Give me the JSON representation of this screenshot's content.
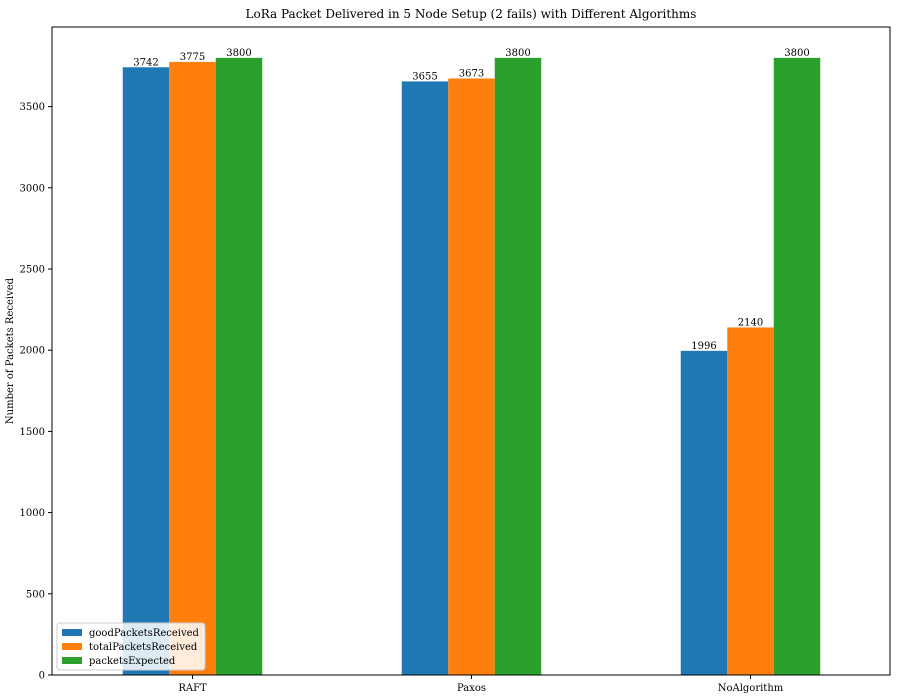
{
  "chart_data": {
    "type": "bar",
    "title": "LoRa Packet Delivered in 5 Node Setup (2 fails) with Different Algorithms",
    "xlabel": "",
    "ylabel": "Number of Packets Received",
    "categories": [
      "RAFT",
      "Paxos",
      "NoAlgorithm"
    ],
    "series": [
      {
        "name": "goodPacketsReceived",
        "values": [
          3742,
          3655,
          1996
        ],
        "color": "#1f77b4"
      },
      {
        "name": "totalPacketsReceived",
        "values": [
          3775,
          3673,
          2140
        ],
        "color": "#ff7f0e"
      },
      {
        "name": "packetsExpected",
        "values": [
          3800,
          3800,
          3800
        ],
        "color": "#2ca02c"
      }
    ],
    "ylim": [
      0,
      3990
    ],
    "yticks": [
      0,
      500,
      1000,
      1500,
      2000,
      2500,
      3000,
      3500
    ],
    "grid": false,
    "legend_position": "lower-left",
    "data_labels": true
  }
}
